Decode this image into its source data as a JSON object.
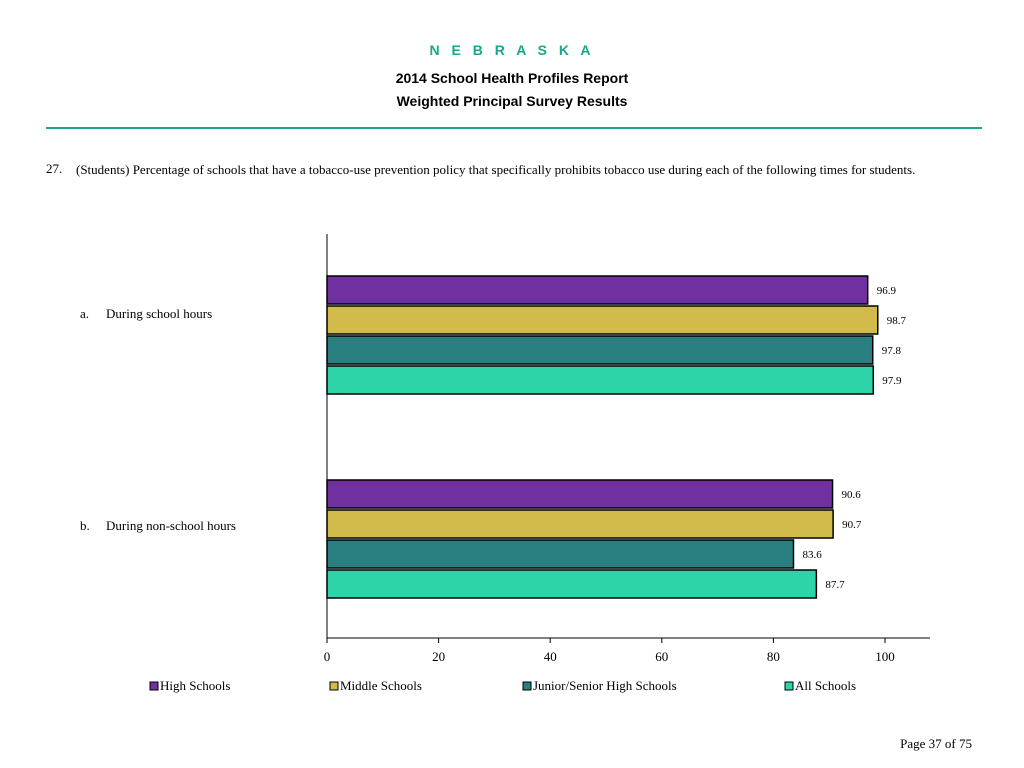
{
  "header": {
    "state": "N E B R A S K A",
    "title_line1": "2014 School Health Profiles Report",
    "title_line2": "Weighted Principal Survey Results"
  },
  "question": {
    "number": "27.",
    "text": "(Students) Percentage of schools that have a tobacco-use prevention policy that specifically prohibits tobacco use during each of the following times for students."
  },
  "chart_data": {
    "type": "bar",
    "orientation": "horizontal",
    "categories": [
      {
        "letter": "a.",
        "label": "During school hours"
      },
      {
        "letter": "b.",
        "label": "During non-school hours"
      }
    ],
    "series": [
      {
        "name": "High Schools",
        "color": "#7030a0",
        "values": [
          96.9,
          90.6
        ]
      },
      {
        "name": "Middle Schools",
        "color": "#d1bb4a",
        "values": [
          98.7,
          90.7
        ]
      },
      {
        "name": "Junior/Senior High Schools",
        "color": "#2a7f80",
        "values": [
          97.8,
          83.6
        ]
      },
      {
        "name": "All Schools",
        "color": "#2dd4a8",
        "values": [
          97.9,
          87.7
        ]
      }
    ],
    "xlim": [
      0,
      100
    ],
    "xticks": [
      0,
      20,
      40,
      60,
      80,
      100
    ],
    "grid": false,
    "legend_position": "bottom"
  },
  "footer": {
    "page": "Page 37 of 75"
  }
}
